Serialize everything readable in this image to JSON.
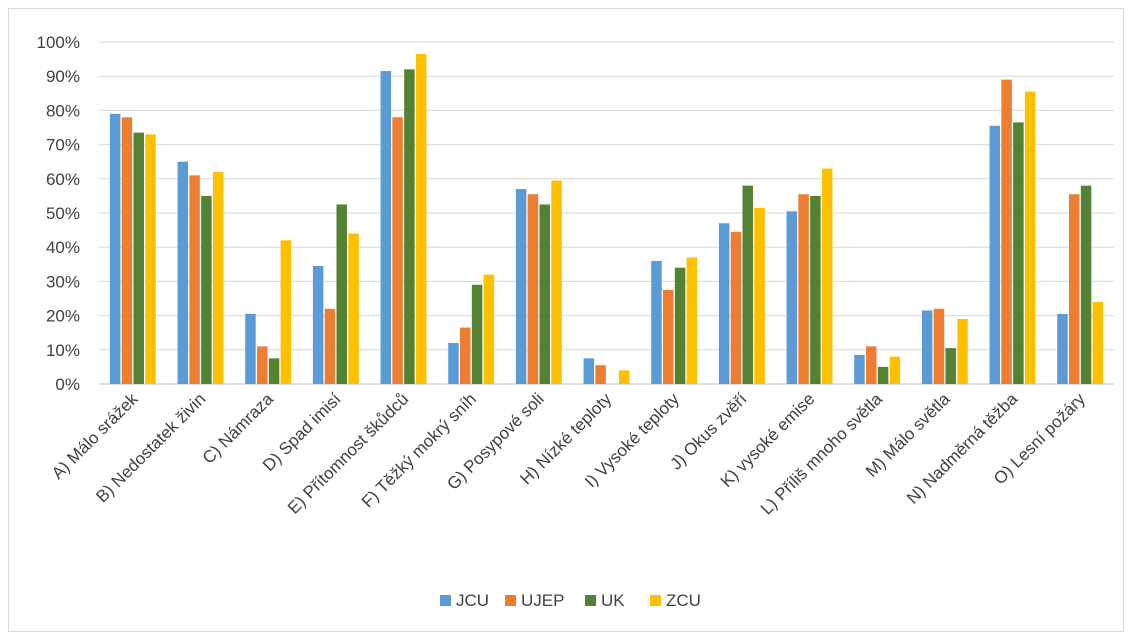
{
  "chart_data": {
    "type": "bar",
    "title": "",
    "xlabel": "",
    "ylabel": "",
    "ylim": [
      0,
      100
    ],
    "y_ticks": [
      "0%",
      "10%",
      "20%",
      "30%",
      "40%",
      "50%",
      "60%",
      "70%",
      "80%",
      "90%",
      "100%"
    ],
    "grid": true,
    "legend_position": "bottom",
    "categories": [
      "A) Málo srážek",
      "B) Nedostatek živin",
      "C) Námraza",
      "D) Spad imisí",
      "E) Přítomnost škůdců",
      "F) Těžký mokrý sníh",
      "G) Posypové soli",
      "H) Nízké teploty",
      "I) Vysoké teploty",
      "J) Okus zvěří",
      "K) vysoké emise",
      "L) Příliš mnoho světla",
      "M) Málo světla",
      "N) Nadměrná těžba",
      "O) Lesní požáry"
    ],
    "series": [
      {
        "name": "JCU",
        "color": "#5b9bd5",
        "values": [
          79,
          65,
          20.5,
          34.5,
          91.5,
          12,
          57,
          7.5,
          36,
          47,
          50.5,
          8.5,
          21.5,
          75.5,
          20.5
        ]
      },
      {
        "name": "UJEP",
        "color": "#ed7d31",
        "values": [
          78,
          61,
          11,
          22,
          78,
          16.5,
          55.5,
          5.5,
          27.5,
          44.5,
          55.5,
          11,
          22,
          89,
          55.5
        ]
      },
      {
        "name": "UK",
        "color": "#548235",
        "values": [
          73.5,
          55,
          7.5,
          52.5,
          92,
          29,
          52.5,
          0,
          34,
          58,
          55,
          5,
          10.5,
          76.5,
          58
        ]
      },
      {
        "name": "ZCU",
        "color": "#ffc000",
        "values": [
          73,
          62,
          42,
          44,
          96.5,
          32,
          59.5,
          4,
          37,
          51.5,
          63,
          8,
          19,
          85.5,
          24
        ]
      }
    ]
  }
}
